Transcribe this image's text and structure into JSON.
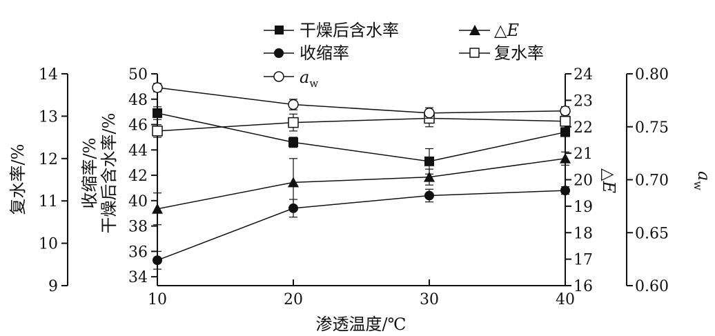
{
  "chart_data": {
    "type": "line",
    "x": [
      10,
      20,
      30,
      40
    ],
    "xlabel": "渗透温度/℃",
    "x_ticks": [
      "10",
      "20",
      "30",
      "40"
    ],
    "xlim": [
      10,
      40
    ],
    "axes": [
      {
        "id": "rehydration",
        "label": "复水率/%",
        "ticks": [
          "9",
          "10",
          "11",
          "12",
          "13",
          "14"
        ],
        "ylim": [
          9,
          14
        ]
      },
      {
        "id": "shrink_moisture",
        "label_lines": [
          "收缩率/%",
          "干燥后含水率/%"
        ],
        "ticks": [
          "34",
          "36",
          "38",
          "40",
          "42",
          "44",
          "46",
          "48",
          "50"
        ],
        "ylim": [
          33.3,
          50
        ]
      },
      {
        "id": "delta_e",
        "label": "△E",
        "ticks": [
          "16",
          "17",
          "18",
          "19",
          "20",
          "21",
          "22",
          "23",
          "24"
        ],
        "ylim": [
          16,
          24
        ]
      },
      {
        "id": "aw",
        "label_italic": "a",
        "label_sub": "w",
        "ticks": [
          "0.60",
          "0.65",
          "0.70",
          "0.75",
          "0.80"
        ],
        "ylim": [
          0.6,
          0.8
        ]
      }
    ],
    "series": [
      {
        "name": "干燥后含水率",
        "axis": "shrink_moisture",
        "marker": "square-filled",
        "values": [
          46.9,
          44.6,
          43.1,
          45.4
        ],
        "errors": [
          0.5,
          0.4,
          1.0,
          0.3
        ]
      },
      {
        "name": "△E",
        "name_italic_part": "E",
        "axis": "delta_e",
        "marker": "triangle-filled",
        "values": [
          18.9,
          19.9,
          20.1,
          20.8
        ],
        "errors": [
          0.6,
          0.9,
          0.3,
          0.25
        ]
      },
      {
        "name": "收缩率",
        "axis": "shrink_moisture",
        "marker": "circle-filled",
        "values": [
          35.3,
          39.4,
          40.4,
          40.8
        ],
        "errors": [
          0.7,
          0.7,
          0.5,
          0.3
        ]
      },
      {
        "name": "复水率",
        "axis": "rehydration",
        "marker": "square-open",
        "values": [
          12.65,
          12.85,
          12.95,
          12.88
        ],
        "errors": [
          0.15,
          0.2,
          0.2,
          0.15
        ]
      },
      {
        "name": "a",
        "name_sub": "w",
        "axis": "aw",
        "marker": "circle-open",
        "values": [
          0.787,
          0.771,
          0.763,
          0.765
        ],
        "errors": [
          0.004,
          0.005,
          0.005,
          0.004
        ]
      }
    ],
    "legend_position": "top-center",
    "grid": false
  }
}
